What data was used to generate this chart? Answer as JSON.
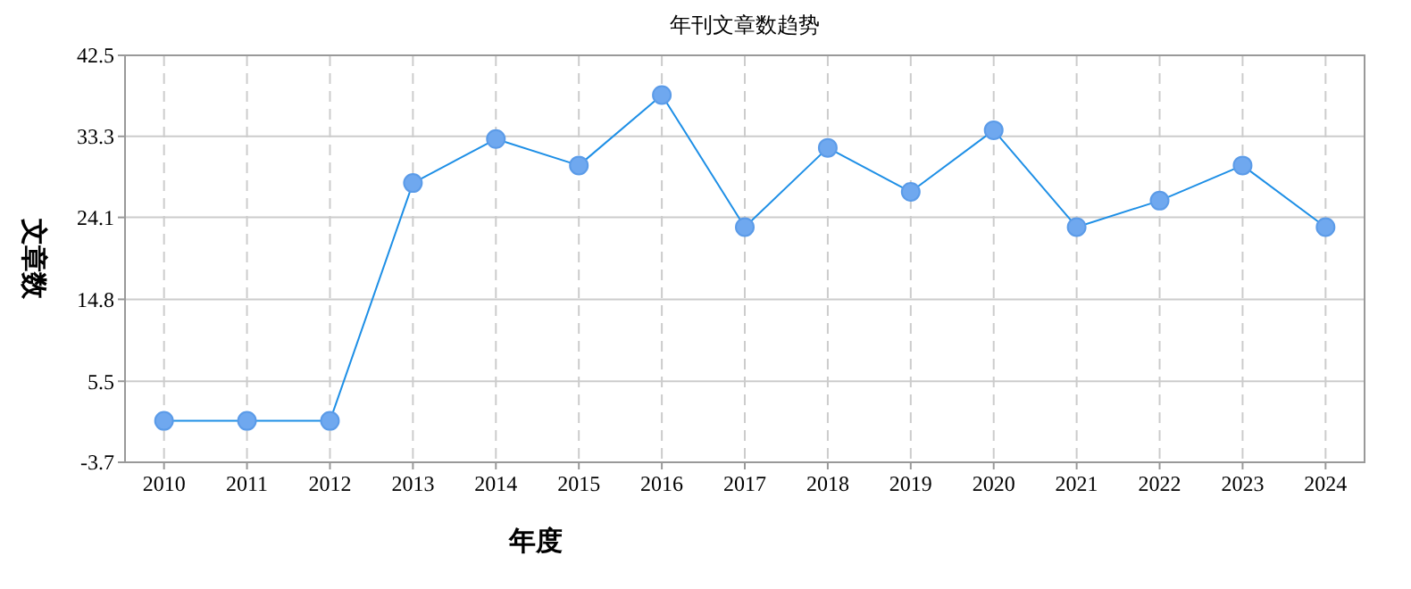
{
  "chart_data": {
    "type": "line",
    "title": "年刊文章数趋势",
    "xlabel": "年度",
    "ylabel": "文章数",
    "categories": [
      "2010",
      "2011",
      "2012",
      "2013",
      "2014",
      "2015",
      "2016",
      "2017",
      "2018",
      "2019",
      "2020",
      "2021",
      "2022",
      "2023",
      "2024"
    ],
    "series": [
      {
        "color": "#1e8fe6",
        "values": [
          1,
          1,
          1,
          28,
          33,
          30,
          38,
          23,
          32,
          27,
          34,
          23,
          26,
          30,
          23
        ]
      }
    ],
    "ylim": [
      -3.7,
      42.5
    ],
    "yticks": [
      -3.7,
      5.5,
      14.8,
      24.1,
      33.3,
      42.5
    ],
    "grid": true,
    "marker": "circle",
    "line_style": "solid"
  }
}
